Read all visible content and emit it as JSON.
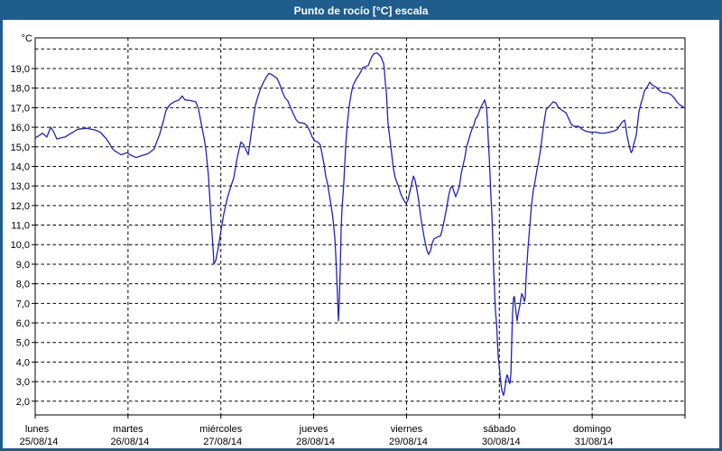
{
  "window": {
    "title": "Punto de rocío [°C] escala",
    "colors": {
      "titlebar_bg": "#1f5d8d",
      "titlebar_text": "#ffffff",
      "frame": "#1f5d8d",
      "plot_bg": "#ffffff",
      "grid": "#000000",
      "axis": "#000000",
      "line": "#2222bb"
    }
  },
  "chart_data": {
    "type": "line",
    "title": "Punto de rocío [°C] escala",
    "unit_label": "°C",
    "grid": "dashed",
    "legend": "none",
    "ylim_drawn": [
      1.3,
      20.6
    ],
    "y_grid_min": 2,
    "y_grid_max": 20,
    "y_grid_step": 1,
    "y_ticks": [
      {
        "value": 19,
        "label": "19,0"
      },
      {
        "value": 18,
        "label": "18,0"
      },
      {
        "value": 17,
        "label": "17,0"
      },
      {
        "value": 16,
        "label": "16,0"
      },
      {
        "value": 15,
        "label": "15,0"
      },
      {
        "value": 14,
        "label": "14,0"
      },
      {
        "value": 13,
        "label": "13,0"
      },
      {
        "value": 12,
        "label": "12,0"
      },
      {
        "value": 11,
        "label": "11,0"
      },
      {
        "value": 10,
        "label": "10,0"
      },
      {
        "value": 9,
        "label": "9,0"
      },
      {
        "value": 8,
        "label": "8,0"
      },
      {
        "value": 7,
        "label": "7,0"
      },
      {
        "value": 6,
        "label": "6,0"
      },
      {
        "value": 5,
        "label": "5,0"
      },
      {
        "value": 4,
        "label": "4,0"
      },
      {
        "value": 3,
        "label": "3,0"
      },
      {
        "value": 2,
        "label": "2,0"
      }
    ],
    "x_axis": {
      "hours_span": 168,
      "hours_per_day": 24,
      "days": [
        {
          "name": "lunes",
          "date": "25/08/14"
        },
        {
          "name": "martes",
          "date": "26/08/14"
        },
        {
          "name": "miércoles",
          "date": "27/08/14"
        },
        {
          "name": "jueves",
          "date": "28/08/14"
        },
        {
          "name": "viernes",
          "date": "29/08/14"
        },
        {
          "name": "sábado",
          "date": "30/08/14"
        },
        {
          "name": "domingo",
          "date": "31/08/14"
        }
      ]
    },
    "series": [
      {
        "name": "Punto de rocío",
        "color": "#2222bb",
        "points": [
          [
            0,
            15.45
          ],
          [
            1.2,
            15.6
          ],
          [
            1.9,
            15.7
          ],
          [
            3,
            15.5
          ],
          [
            4,
            16
          ],
          [
            4.7,
            15.8
          ],
          [
            5.6,
            15.4
          ],
          [
            6.5,
            15.45
          ],
          [
            7.7,
            15.5
          ],
          [
            8.9,
            15.65
          ],
          [
            9.8,
            15.75
          ],
          [
            11,
            15.9
          ],
          [
            13.3,
            15.95
          ],
          [
            15.6,
            15.85
          ],
          [
            16.8,
            15.75
          ],
          [
            18.2,
            15.45
          ],
          [
            19.1,
            15.2
          ],
          [
            19.8,
            14.95
          ],
          [
            20.5,
            14.8
          ],
          [
            22.2,
            14.6
          ],
          [
            23.8,
            14.7
          ],
          [
            24.5,
            14.6
          ],
          [
            26.1,
            14.45
          ],
          [
            27.5,
            14.55
          ],
          [
            29.2,
            14.65
          ],
          [
            30.8,
            14.9
          ],
          [
            31.5,
            15.3
          ],
          [
            32.2,
            15.65
          ],
          [
            33.1,
            16.3
          ],
          [
            33.8,
            16.85
          ],
          [
            34.8,
            17.15
          ],
          [
            35.9,
            17.3
          ],
          [
            37.2,
            17.4
          ],
          [
            38,
            17.6
          ],
          [
            38.7,
            17.4
          ],
          [
            40,
            17.37
          ],
          [
            41.5,
            17.3
          ],
          [
            42.2,
            16.95
          ],
          [
            42.9,
            16.2
          ],
          [
            43.6,
            15.5
          ],
          [
            44.1,
            14.9
          ],
          [
            44.8,
            13.5
          ],
          [
            45.5,
            11.2
          ],
          [
            46,
            9.8
          ],
          [
            46.2,
            9
          ],
          [
            46.7,
            9.2
          ],
          [
            47.4,
            9.9
          ],
          [
            48.1,
            10.8
          ],
          [
            48.8,
            11.6
          ],
          [
            49.7,
            12.4
          ],
          [
            50.6,
            13
          ],
          [
            51.3,
            13.4
          ],
          [
            52.3,
            14.5
          ],
          [
            53,
            15.1
          ],
          [
            53.2,
            15.25
          ],
          [
            53.9,
            15.1
          ],
          [
            54.6,
            14.8
          ],
          [
            55.1,
            14.6
          ],
          [
            55.8,
            15.6
          ],
          [
            56.5,
            16.6
          ],
          [
            56.9,
            17.1
          ],
          [
            57.6,
            17.6
          ],
          [
            58.3,
            18
          ],
          [
            59,
            18.3
          ],
          [
            59.7,
            18.55
          ],
          [
            60.4,
            18.75
          ],
          [
            61.1,
            18.7
          ],
          [
            61.8,
            18.6
          ],
          [
            62.5,
            18.5
          ],
          [
            63.2,
            18.2
          ],
          [
            63.9,
            17.8
          ],
          [
            64.6,
            17.5
          ],
          [
            65.3,
            17.35
          ],
          [
            66,
            17
          ],
          [
            66.7,
            16.7
          ],
          [
            67.4,
            16.4
          ],
          [
            68.1,
            16.25
          ],
          [
            69.5,
            16.2
          ],
          [
            70.2,
            16.1
          ],
          [
            70.9,
            15.85
          ],
          [
            71.6,
            15.5
          ],
          [
            72.3,
            15.3
          ],
          [
            73,
            15.25
          ],
          [
            73.7,
            15.1
          ],
          [
            74.2,
            14.6
          ],
          [
            74.7,
            14.1
          ],
          [
            75.1,
            13.5
          ],
          [
            75.6,
            13.1
          ],
          [
            76.1,
            12.5
          ],
          [
            76.5,
            12
          ],
          [
            77,
            11.3
          ],
          [
            77.5,
            10.3
          ],
          [
            77.7,
            9.5
          ],
          [
            77.9,
            8.6
          ],
          [
            78.2,
            7.2
          ],
          [
            78.4,
            6.1
          ],
          [
            78.6,
            7
          ],
          [
            78.9,
            9
          ],
          [
            79.1,
            10.8
          ],
          [
            79.3,
            11.8
          ],
          [
            79.8,
            13.2
          ],
          [
            80.3,
            15.1
          ],
          [
            80.7,
            16.2
          ],
          [
            81.2,
            17.1
          ],
          [
            81.7,
            17.7
          ],
          [
            82.1,
            18.1
          ],
          [
            82.8,
            18.4
          ],
          [
            83.8,
            18.7
          ],
          [
            84.2,
            18.85
          ],
          [
            84.7,
            19.05
          ],
          [
            85.4,
            19.1
          ],
          [
            86.1,
            19.15
          ],
          [
            86.6,
            19.4
          ],
          [
            87,
            19.6
          ],
          [
            87.5,
            19.75
          ],
          [
            88.4,
            19.8
          ],
          [
            89.4,
            19.6
          ],
          [
            90.1,
            19.25
          ],
          [
            90.3,
            18.9
          ],
          [
            90.5,
            18.3
          ],
          [
            90.8,
            17.8
          ],
          [
            91.2,
            16.2
          ],
          [
            91.7,
            15.4
          ],
          [
            92.2,
            14.6
          ],
          [
            92.6,
            13.9
          ],
          [
            93.1,
            13.4
          ],
          [
            93.8,
            13.05
          ],
          [
            94.5,
            12.6
          ],
          [
            95.2,
            12.3
          ],
          [
            95.9,
            12.1
          ],
          [
            96.4,
            12.3
          ],
          [
            97.1,
            12.9
          ],
          [
            97.8,
            13.5
          ],
          [
            98.2,
            13.3
          ],
          [
            98.7,
            12.8
          ],
          [
            99.2,
            12.2
          ],
          [
            99.6,
            11.5
          ],
          [
            100.1,
            10.9
          ],
          [
            100.6,
            10.35
          ],
          [
            101.3,
            9.7
          ],
          [
            101.7,
            9.5
          ],
          [
            102.2,
            9.7
          ],
          [
            102.7,
            10.1
          ],
          [
            103.1,
            10.3
          ],
          [
            104.1,
            10.4
          ],
          [
            104.8,
            10.45
          ],
          [
            105.2,
            10.75
          ],
          [
            105.7,
            11.2
          ],
          [
            106.4,
            11.9
          ],
          [
            106.9,
            12.5
          ],
          [
            107.3,
            12.85
          ],
          [
            107.8,
            13
          ],
          [
            108.3,
            12.7
          ],
          [
            108.7,
            12.45
          ],
          [
            109.2,
            12.7
          ],
          [
            109.7,
            13
          ],
          [
            110.1,
            13.6
          ],
          [
            110.6,
            14.05
          ],
          [
            111.1,
            14.45
          ],
          [
            111.5,
            15
          ],
          [
            112,
            15.3
          ],
          [
            112.5,
            15.65
          ],
          [
            112.9,
            15.9
          ],
          [
            113.4,
            16.1
          ],
          [
            113.9,
            16.45
          ],
          [
            114.3,
            16.55
          ],
          [
            114.8,
            16.8
          ],
          [
            115.3,
            17.05
          ],
          [
            115.7,
            17.2
          ],
          [
            116.2,
            17.4
          ],
          [
            116.7,
            17
          ],
          [
            116.9,
            16.35
          ],
          [
            117.1,
            15.45
          ],
          [
            117.4,
            14.5
          ],
          [
            117.6,
            13.5
          ],
          [
            117.8,
            12.5
          ],
          [
            118.1,
            11.5
          ],
          [
            118.3,
            10.2
          ],
          [
            118.5,
            8.8
          ],
          [
            118.8,
            7.5
          ],
          [
            119,
            6.6
          ],
          [
            119.3,
            5.9
          ],
          [
            119.5,
            5.1
          ],
          [
            119.7,
            4.3
          ],
          [
            120,
            3.75
          ],
          [
            120.2,
            3.3
          ],
          [
            120.4,
            2.9
          ],
          [
            120.6,
            2.6
          ],
          [
            120.9,
            2.4
          ],
          [
            121.1,
            2.3
          ],
          [
            121.3,
            2.5
          ],
          [
            121.6,
            2.9
          ],
          [
            121.8,
            3.2
          ],
          [
            122,
            3.35
          ],
          [
            122.3,
            3.2
          ],
          [
            122.5,
            3
          ],
          [
            122.7,
            2.9
          ],
          [
            123,
            3.4
          ],
          [
            123.2,
            5
          ],
          [
            123.4,
            6.5
          ],
          [
            123.7,
            7.3
          ],
          [
            123.9,
            7.35
          ],
          [
            124.1,
            6.9
          ],
          [
            124.4,
            6.4
          ],
          [
            124.6,
            6.1
          ],
          [
            124.8,
            6.4
          ],
          [
            125.3,
            6.9
          ],
          [
            125.8,
            7.5
          ],
          [
            126.2,
            7.3
          ],
          [
            126.5,
            7.1
          ],
          [
            126.7,
            7.3
          ],
          [
            126.9,
            8.3
          ],
          [
            127.4,
            9.8
          ],
          [
            127.9,
            11
          ],
          [
            128.3,
            12
          ],
          [
            128.8,
            12.8
          ],
          [
            129.3,
            13.3
          ],
          [
            129.7,
            13.8
          ],
          [
            130.2,
            14.3
          ],
          [
            130.7,
            14.9
          ],
          [
            131.1,
            15.6
          ],
          [
            131.6,
            16.3
          ],
          [
            132.1,
            16.9
          ],
          [
            132.8,
            17.05
          ],
          [
            133.5,
            17.2
          ],
          [
            133.9,
            17.3
          ],
          [
            134.6,
            17.25
          ],
          [
            135.3,
            17
          ],
          [
            136.3,
            16.85
          ],
          [
            137.2,
            16.75
          ],
          [
            137.9,
            16.45
          ],
          [
            138.6,
            16.15
          ],
          [
            139.3,
            16.05
          ],
          [
            140.5,
            16.05
          ],
          [
            141.4,
            15.9
          ],
          [
            142.3,
            15.8
          ],
          [
            143.3,
            15.75
          ],
          [
            144.9,
            15.75
          ],
          [
            146.1,
            15.7
          ],
          [
            147.2,
            15.7
          ],
          [
            148.4,
            15.75
          ],
          [
            149.6,
            15.8
          ],
          [
            150.5,
            15.9
          ],
          [
            151.2,
            16.1
          ],
          [
            151.9,
            16.3
          ],
          [
            152.4,
            16.37
          ],
          [
            152.6,
            16.15
          ],
          [
            152.9,
            15.7
          ],
          [
            153.3,
            15.3
          ],
          [
            153.7,
            14.95
          ],
          [
            154.1,
            14.7
          ],
          [
            154.4,
            14.8
          ],
          [
            154.7,
            15.1
          ],
          [
            155.4,
            15.6
          ],
          [
            156.1,
            16.8
          ],
          [
            156.6,
            17.2
          ],
          [
            157,
            17.45
          ],
          [
            157.5,
            17.85
          ],
          [
            158.2,
            18.05
          ],
          [
            158.9,
            18.3
          ],
          [
            159.6,
            18.15
          ],
          [
            160.5,
            18.05
          ],
          [
            161.2,
            17.9
          ],
          [
            162.2,
            17.78
          ],
          [
            163.6,
            17.75
          ],
          [
            164.5,
            17.65
          ],
          [
            165.2,
            17.5
          ],
          [
            165.9,
            17.3
          ],
          [
            166.6,
            17.15
          ],
          [
            167.4,
            17.05
          ],
          [
            167.9,
            17
          ]
        ]
      }
    ]
  }
}
